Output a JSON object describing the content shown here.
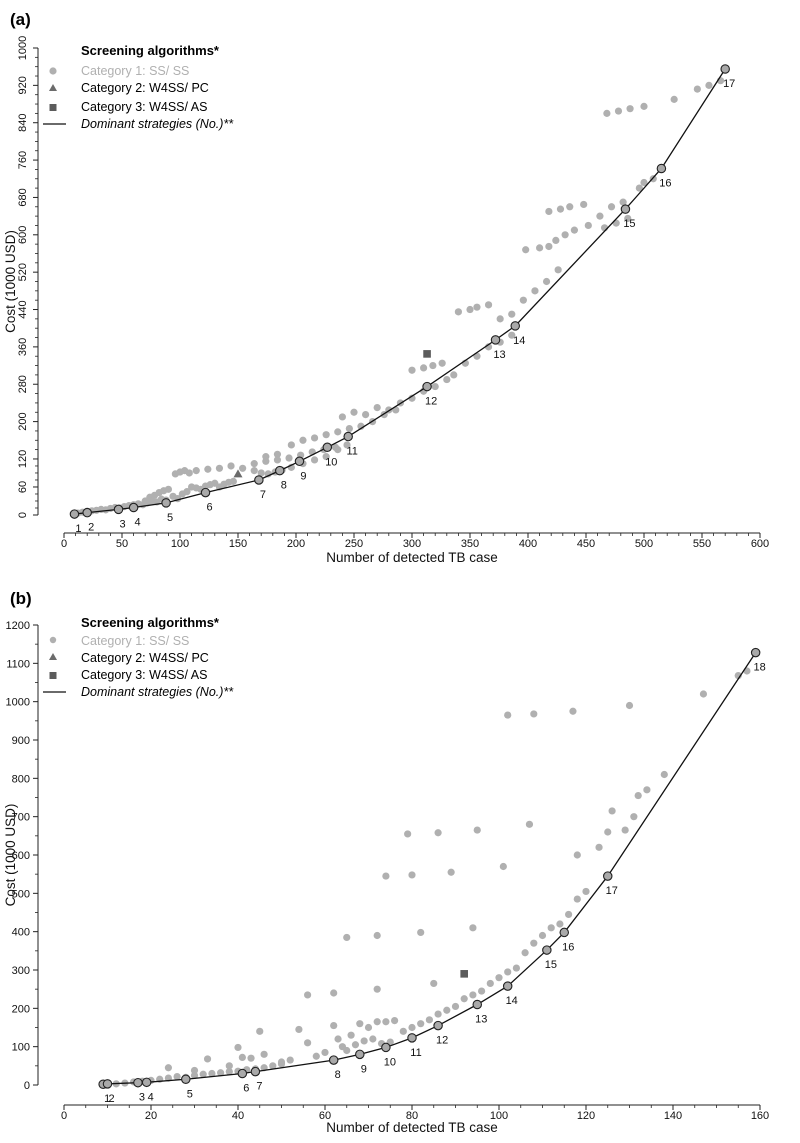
{
  "colors": {
    "category1": "#b0b0b0",
    "category2": "#6b6b6b",
    "category3": "#5c5c5c",
    "dominant_line": "#111111",
    "dominant_marker_fill": "#a9a9a9",
    "axis": "#222222",
    "text": "#111111"
  },
  "chart_data": [
    {
      "panel_label": "(a)",
      "type": "scatter",
      "xlabel": "Number of detected TB case",
      "ylabel": "Cost (1000 USD)",
      "xlim": [
        0,
        600
      ],
      "ylim": [
        0,
        1000
      ],
      "x_ticks": [
        "0",
        "50",
        "100",
        "150",
        "200",
        "250",
        "300",
        "350",
        "400",
        "450",
        "500",
        "550",
        "600"
      ],
      "y_ticks": [
        "0",
        "60",
        "120",
        "200",
        "280",
        "360",
        "440",
        "520",
        "600",
        "680",
        "760",
        "840",
        "920",
        "1000"
      ],
      "y_tick_values": [
        0,
        60,
        120,
        200,
        280,
        360,
        440,
        520,
        600,
        680,
        760,
        840,
        920,
        1000
      ],
      "legend": {
        "title": "Screening algorithms*",
        "items": [
          {
            "label": "Category 1: SS/ SS",
            "marker": "circle"
          },
          {
            "label": "Category 2: W4SS/ PC",
            "marker": "triangle"
          },
          {
            "label": "Category 3: W4SS/ AS",
            "marker": "square"
          },
          {
            "label": "Dominant strategies (No.)**",
            "marker": "line"
          }
        ]
      },
      "category1": [
        [
          12,
          4
        ],
        [
          16,
          6
        ],
        [
          20,
          8
        ],
        [
          24,
          9
        ],
        [
          28,
          10
        ],
        [
          32,
          12
        ],
        [
          36,
          11
        ],
        [
          40,
          14
        ],
        [
          44,
          16
        ],
        [
          48,
          15
        ],
        [
          52,
          18
        ],
        [
          56,
          20
        ],
        [
          60,
          22
        ],
        [
          64,
          24
        ],
        [
          68,
          22
        ],
        [
          72,
          26
        ],
        [
          76,
          30
        ],
        [
          80,
          28
        ],
        [
          84,
          34
        ],
        [
          88,
          32
        ],
        [
          70,
          30
        ],
        [
          74,
          38
        ],
        [
          78,
          42
        ],
        [
          82,
          48
        ],
        [
          86,
          52
        ],
        [
          90,
          55
        ],
        [
          94,
          40
        ],
        [
          98,
          35
        ],
        [
          102,
          45
        ],
        [
          106,
          50
        ],
        [
          110,
          60
        ],
        [
          114,
          58
        ],
        [
          118,
          55
        ],
        [
          122,
          62
        ],
        [
          126,
          65
        ],
        [
          130,
          68
        ],
        [
          134,
          60
        ],
        [
          138,
          66
        ],
        [
          142,
          70
        ],
        [
          146,
          72
        ],
        [
          96,
          88
        ],
        [
          100,
          92
        ],
        [
          104,
          95
        ],
        [
          108,
          90
        ],
        [
          114,
          95
        ],
        [
          124,
          98
        ],
        [
          134,
          100
        ],
        [
          144,
          105
        ],
        [
          154,
          100
        ],
        [
          164,
          110
        ],
        [
          174,
          115
        ],
        [
          184,
          118
        ],
        [
          194,
          122
        ],
        [
          204,
          128
        ],
        [
          214,
          135
        ],
        [
          224,
          140
        ],
        [
          234,
          145
        ],
        [
          244,
          150
        ],
        [
          174,
          125
        ],
        [
          184,
          130
        ],
        [
          164,
          95
        ],
        [
          170,
          90
        ],
        [
          176,
          88
        ],
        [
          182,
          92
        ],
        [
          188,
          96
        ],
        [
          196,
          102
        ],
        [
          206,
          110
        ],
        [
          216,
          118
        ],
        [
          226,
          125
        ],
        [
          236,
          140
        ],
        [
          196,
          150
        ],
        [
          206,
          160
        ],
        [
          216,
          165
        ],
        [
          226,
          172
        ],
        [
          236,
          178
        ],
        [
          246,
          185
        ],
        [
          256,
          190
        ],
        [
          266,
          200
        ],
        [
          276,
          215
        ],
        [
          286,
          225
        ],
        [
          240,
          210
        ],
        [
          250,
          220
        ],
        [
          260,
          215
        ],
        [
          270,
          230
        ],
        [
          280,
          225
        ],
        [
          290,
          240
        ],
        [
          300,
          250
        ],
        [
          310,
          265
        ],
        [
          320,
          275
        ],
        [
          330,
          290
        ],
        [
          300,
          310
        ],
        [
          310,
          315
        ],
        [
          318,
          320
        ],
        [
          326,
          325
        ],
        [
          336,
          300
        ],
        [
          346,
          325
        ],
        [
          356,
          340
        ],
        [
          366,
          360
        ],
        [
          376,
          370
        ],
        [
          386,
          385
        ],
        [
          340,
          435
        ],
        [
          350,
          440
        ],
        [
          356,
          445
        ],
        [
          366,
          450
        ],
        [
          376,
          420
        ],
        [
          386,
          430
        ],
        [
          396,
          460
        ],
        [
          406,
          480
        ],
        [
          416,
          500
        ],
        [
          426,
          525
        ],
        [
          398,
          568
        ],
        [
          410,
          572
        ],
        [
          418,
          575
        ],
        [
          424,
          588
        ],
        [
          432,
          600
        ],
        [
          440,
          610
        ],
        [
          452,
          620
        ],
        [
          462,
          640
        ],
        [
          472,
          660
        ],
        [
          482,
          670
        ],
        [
          418,
          650
        ],
        [
          428,
          655
        ],
        [
          436,
          660
        ],
        [
          448,
          665
        ],
        [
          466,
          615
        ],
        [
          476,
          625
        ],
        [
          486,
          635
        ],
        [
          496,
          700
        ],
        [
          500,
          712
        ],
        [
          508,
          720
        ],
        [
          468,
          860
        ],
        [
          478,
          865
        ],
        [
          488,
          870
        ],
        [
          500,
          875
        ],
        [
          526,
          890
        ],
        [
          546,
          912
        ],
        [
          556,
          920
        ],
        [
          566,
          930
        ]
      ],
      "category2": [
        [
          150,
          88
        ]
      ],
      "category3": [
        [
          313,
          345
        ]
      ],
      "dominant": [
        {
          "label": "1",
          "x": 9,
          "y": 2
        },
        {
          "label": "2",
          "x": 20,
          "y": 5
        },
        {
          "label": "3",
          "x": 47,
          "y": 12
        },
        {
          "label": "4",
          "x": 60,
          "y": 16
        },
        {
          "label": "5",
          "x": 88,
          "y": 26
        },
        {
          "label": "6",
          "x": 122,
          "y": 48
        },
        {
          "label": "7",
          "x": 168,
          "y": 75
        },
        {
          "label": "8",
          "x": 186,
          "y": 95
        },
        {
          "label": "9",
          "x": 203,
          "y": 115
        },
        {
          "label": "10",
          "x": 227,
          "y": 145
        },
        {
          "label": "11",
          "x": 245,
          "y": 168
        },
        {
          "label": "12",
          "x": 313,
          "y": 275
        },
        {
          "label": "13",
          "x": 372,
          "y": 375
        },
        {
          "label": "14",
          "x": 389,
          "y": 405
        },
        {
          "label": "15",
          "x": 484,
          "y": 655
        },
        {
          "label": "16",
          "x": 515,
          "y": 742
        },
        {
          "label": "17",
          "x": 570,
          "y": 955
        }
      ]
    },
    {
      "panel_label": "(b)",
      "type": "scatter",
      "xlabel": "Number of detected TB case",
      "ylabel": "Cost (1000 USD)",
      "xlim": [
        0,
        160
      ],
      "ylim": [
        0,
        1200
      ],
      "x_ticks": [
        "0",
        "20",
        "40",
        "60",
        "80",
        "100",
        "120",
        "140",
        "160"
      ],
      "y_ticks": [
        "0",
        "100",
        "200",
        "300",
        "400",
        "500",
        "600",
        "700",
        "800",
        "900",
        "1000",
        "1100",
        "1200"
      ],
      "y_tick_values": [
        0,
        100,
        200,
        300,
        400,
        500,
        600,
        700,
        800,
        900,
        1000,
        1100,
        1200
      ],
      "legend": {
        "title": "Screening algorithms*",
        "items": [
          {
            "label": "Category 1: SS/ SS",
            "marker": "circle"
          },
          {
            "label": "Category 2: W4SS/ PC",
            "marker": "triangle"
          },
          {
            "label": "Category 3: W4SS/ AS",
            "marker": "square"
          },
          {
            "label": "Dominant strategies (No.)**",
            "marker": "line"
          }
        ]
      },
      "category1": [
        [
          12,
          3
        ],
        [
          14,
          5
        ],
        [
          16,
          8
        ],
        [
          18,
          10
        ],
        [
          20,
          12
        ],
        [
          22,
          15
        ],
        [
          24,
          18
        ],
        [
          26,
          22
        ],
        [
          28,
          20
        ],
        [
          30,
          25
        ],
        [
          32,
          28
        ],
        [
          34,
          30
        ],
        [
          36,
          32
        ],
        [
          38,
          35
        ],
        [
          40,
          36
        ],
        [
          42,
          40
        ],
        [
          44,
          42
        ],
        [
          46,
          45
        ],
        [
          48,
          50
        ],
        [
          50,
          55
        ],
        [
          24,
          45
        ],
        [
          30,
          38
        ],
        [
          33,
          68
        ],
        [
          38,
          50
        ],
        [
          40,
          98
        ],
        [
          41,
          72
        ],
        [
          43,
          70
        ],
        [
          45,
          140
        ],
        [
          46,
          80
        ],
        [
          50,
          60
        ],
        [
          52,
          65
        ],
        [
          54,
          145
        ],
        [
          56,
          110
        ],
        [
          58,
          75
        ],
        [
          60,
          85
        ],
        [
          62,
          155
        ],
        [
          63,
          120
        ],
        [
          64,
          100
        ],
        [
          65,
          90
        ],
        [
          66,
          130
        ],
        [
          67,
          105
        ],
        [
          68,
          160
        ],
        [
          69,
          115
        ],
        [
          70,
          150
        ],
        [
          71,
          120
        ],
        [
          72,
          165
        ],
        [
          73,
          108
        ],
        [
          74,
          165
        ],
        [
          75,
          112
        ],
        [
          76,
          168
        ],
        [
          78,
          140
        ],
        [
          80,
          150
        ],
        [
          82,
          160
        ],
        [
          84,
          170
        ],
        [
          86,
          185
        ],
        [
          88,
          195
        ],
        [
          90,
          205
        ],
        [
          92,
          225
        ],
        [
          94,
          235
        ],
        [
          96,
          245
        ],
        [
          98,
          265
        ],
        [
          100,
          280
        ],
        [
          102,
          295
        ],
        [
          104,
          305
        ],
        [
          106,
          345
        ],
        [
          108,
          370
        ],
        [
          110,
          390
        ],
        [
          112,
          410
        ],
        [
          114,
          420
        ],
        [
          116,
          445
        ],
        [
          56,
          235
        ],
        [
          62,
          240
        ],
        [
          72,
          250
        ],
        [
          85,
          265
        ],
        [
          65,
          385
        ],
        [
          72,
          390
        ],
        [
          82,
          398
        ],
        [
          94,
          410
        ],
        [
          74,
          545
        ],
        [
          80,
          548
        ],
        [
          89,
          555
        ],
        [
          101,
          570
        ],
        [
          79,
          655
        ],
        [
          86,
          658
        ],
        [
          95,
          665
        ],
        [
          107,
          680
        ],
        [
          102,
          965
        ],
        [
          108,
          968
        ],
        [
          117,
          975
        ],
        [
          130,
          990
        ],
        [
          118,
          485
        ],
        [
          120,
          505
        ],
        [
          118,
          600
        ],
        [
          123,
          620
        ],
        [
          125,
          660
        ],
        [
          126,
          715
        ],
        [
          129,
          665
        ],
        [
          131,
          700
        ],
        [
          132,
          755
        ],
        [
          134,
          770
        ],
        [
          138,
          810
        ],
        [
          147,
          1020
        ],
        [
          155,
          1068
        ],
        [
          157,
          1080
        ]
      ],
      "category2": [],
      "category3": [
        [
          92,
          290
        ]
      ],
      "dominant": [
        {
          "label": "1",
          "x": 9,
          "y": 2
        },
        {
          "label": "2",
          "x": 10,
          "y": 3
        },
        {
          "label": "3",
          "x": 17,
          "y": 6
        },
        {
          "label": "4",
          "x": 19,
          "y": 7
        },
        {
          "label": "5",
          "x": 28,
          "y": 15
        },
        {
          "label": "6",
          "x": 41,
          "y": 30
        },
        {
          "label": "7",
          "x": 44,
          "y": 35
        },
        {
          "label": "8",
          "x": 62,
          "y": 65
        },
        {
          "label": "9",
          "x": 68,
          "y": 80
        },
        {
          "label": "10",
          "x": 74,
          "y": 98
        },
        {
          "label": "11",
          "x": 80,
          "y": 123
        },
        {
          "label": "12",
          "x": 86,
          "y": 155
        },
        {
          "label": "13",
          "x": 95,
          "y": 210
        },
        {
          "label": "14",
          "x": 102,
          "y": 258
        },
        {
          "label": "15",
          "x": 111,
          "y": 352
        },
        {
          "label": "16",
          "x": 115,
          "y": 398
        },
        {
          "label": "17",
          "x": 125,
          "y": 545
        },
        {
          "label": "18",
          "x": 159,
          "y": 1128
        }
      ]
    }
  ]
}
